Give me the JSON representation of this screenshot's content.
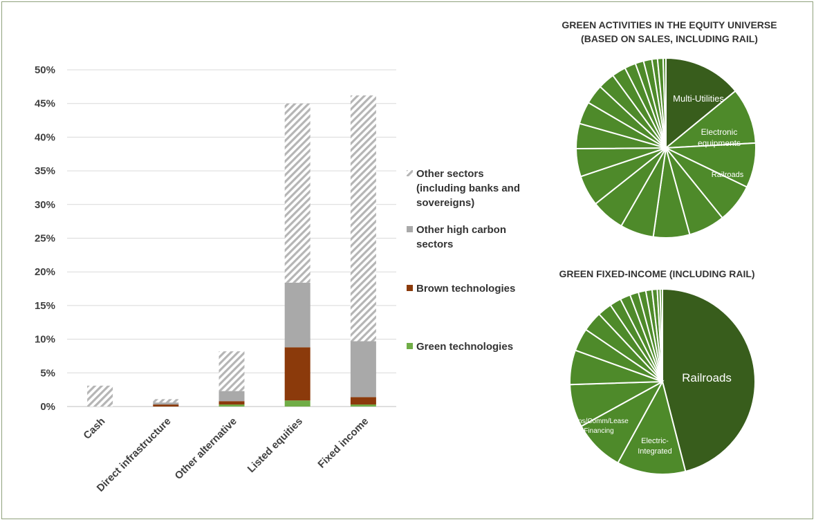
{
  "colors": {
    "other": "#b5b5b5",
    "other_high": "#a9a9a9",
    "brown": "#8b3a0b",
    "green": "#70ad47",
    "grid": "#d9d9d9",
    "pie_dark": "#385d1c",
    "pie_mid": "#4e8a2a",
    "pie_edge": "#ffffff"
  },
  "chart_data": [
    {
      "type": "bar",
      "stacked": true,
      "categories": [
        "Cash",
        "Direct infrastructure",
        "Other alternative",
        "Listed equities",
        "Fixed income"
      ],
      "series": [
        {
          "name": "Green technologies",
          "values": [
            0,
            0,
            0.3,
            0.9,
            0.3
          ]
        },
        {
          "name": "Brown technologies",
          "values": [
            0,
            0.3,
            0.5,
            7.9,
            1.1
          ]
        },
        {
          "name": "Other high carbon sectors",
          "values": [
            0,
            0.3,
            1.5,
            9.6,
            8.3
          ]
        },
        {
          "name": "Other sectors (including banks and sovereigns)",
          "values": [
            3.1,
            0.5,
            5.9,
            26.6,
            36.5
          ]
        }
      ],
      "legend_lines": [
        [
          "Other sectors",
          "(including banks and",
          "sovereigns)"
        ],
        [
          "Other high carbon",
          "sectors"
        ],
        [
          "Brown technologies"
        ],
        [
          "Green technologies"
        ]
      ],
      "ylim": [
        0,
        50
      ],
      "yticks": [
        "0%",
        "5%",
        "10%",
        "15%",
        "20%",
        "25%",
        "30%",
        "35%",
        "40%",
        "45%",
        "50%"
      ],
      "grid": true,
      "legend_position": "right"
    },
    {
      "type": "pie",
      "title_lines": [
        "GREEN ACTIVITIES IN THE EQUITY UNIVERSE",
        "(BASED ON SALES, INCLUDING RAIL)"
      ],
      "labels": [
        "Multi-Utilities",
        "Electronic equipments",
        "Railroads",
        "",
        "",
        "",
        "",
        "",
        "",
        "",
        "",
        "",
        "",
        "",
        "",
        "",
        "",
        "",
        "",
        "",
        ""
      ],
      "label_lines": [
        [
          "Multi-Utilities"
        ],
        [
          "Electronic",
          "equipments"
        ],
        [
          "Railroads"
        ]
      ],
      "values": [
        14.0,
        10.0,
        8.0,
        7.0,
        6.5,
        6.5,
        6.0,
        6.0,
        5.5,
        5.0,
        4.5,
        4.0,
        3.5,
        3.0,
        2.5,
        2.0,
        1.5,
        1.5,
        1.0,
        1.0,
        0.5
      ]
    },
    {
      "type": "pie",
      "title_lines": [
        "GREEN FIXED-INCOME (INCLUDING RAIL)"
      ],
      "labels": [
        "Railroads",
        "Electric-Integrated",
        "Cons/Comm/Lease Financing",
        "",
        "",
        "",
        "",
        "",
        "",
        "",
        "",
        "",
        "",
        "",
        "",
        ""
      ],
      "label_lines": [
        [
          "Railroads"
        ],
        [
          "Electric-",
          "Integrated"
        ],
        [
          "Cons/Comm/Lease",
          "Financing"
        ]
      ],
      "values": [
        46.0,
        12.0,
        9.0,
        7.5,
        6.0,
        4.0,
        3.5,
        2.5,
        2.0,
        1.8,
        1.5,
        1.3,
        1.1,
        0.9,
        0.5,
        0.4
      ]
    }
  ]
}
